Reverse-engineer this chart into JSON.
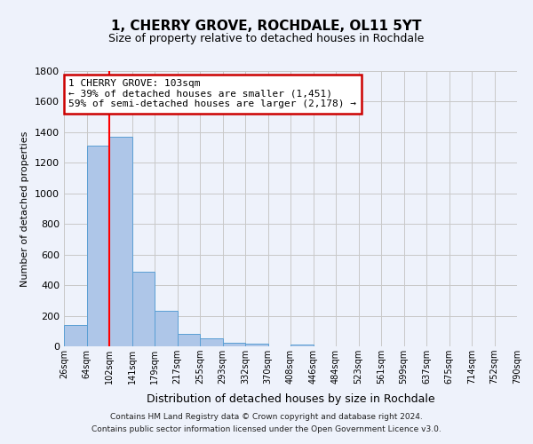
{
  "title": "1, CHERRY GROVE, ROCHDALE, OL11 5YT",
  "subtitle": "Size of property relative to detached houses in Rochdale",
  "xlabel": "Distribution of detached houses by size in Rochdale",
  "ylabel": "Number of detached properties",
  "bin_labels": [
    "26sqm",
    "64sqm",
    "102sqm",
    "141sqm",
    "179sqm",
    "217sqm",
    "255sqm",
    "293sqm",
    "332sqm",
    "370sqm",
    "408sqm",
    "446sqm",
    "484sqm",
    "523sqm",
    "561sqm",
    "599sqm",
    "637sqm",
    "675sqm",
    "714sqm",
    "752sqm",
    "790sqm"
  ],
  "bar_values": [
    140,
    1310,
    1370,
    490,
    230,
    80,
    50,
    25,
    15,
    0,
    10,
    0,
    0,
    0,
    0,
    0,
    0,
    0,
    0,
    0
  ],
  "bar_color": "#aec6e8",
  "bar_edge_color": "#5a9fd4",
  "red_line_bin_index": 2,
  "annotation_line1": "1 CHERRY GROVE: 103sqm",
  "annotation_line2": "← 39% of detached houses are smaller (1,451)",
  "annotation_line3": "59% of semi-detached houses are larger (2,178) →",
  "annotation_box_color": "#ffffff",
  "annotation_box_edge": "#cc0000",
  "ylim": [
    0,
    1800
  ],
  "yticks": [
    0,
    200,
    400,
    600,
    800,
    1000,
    1200,
    1400,
    1600,
    1800
  ],
  "footer_line1": "Contains HM Land Registry data © Crown copyright and database right 2024.",
  "footer_line2": "Contains public sector information licensed under the Open Government Licence v3.0.",
  "background_color": "#eef2fb",
  "grid_color": "#c8c8c8"
}
